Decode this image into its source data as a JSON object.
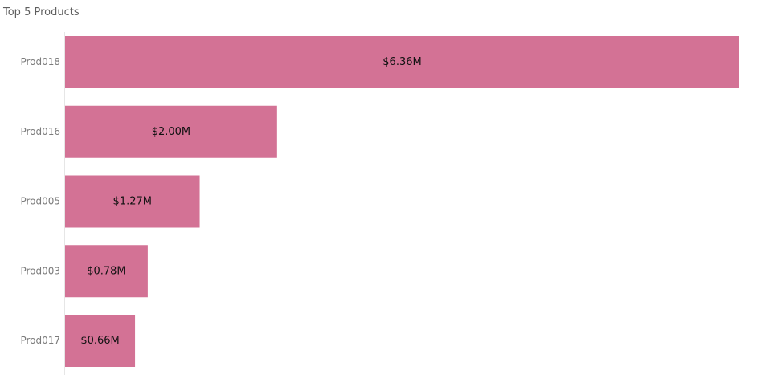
{
  "chart_data": {
    "type": "bar",
    "orientation": "horizontal",
    "title": "Top 5 Products",
    "categories": [
      "Prod018",
      "Prod016",
      "Prod005",
      "Prod003",
      "Prod017"
    ],
    "values": [
      6.36,
      2.0,
      1.27,
      0.78,
      0.66
    ],
    "value_unit": "$M",
    "data_labels": [
      "$6.36M",
      "$2.00M",
      "$1.27M",
      "$0.78M",
      "$0.66M"
    ],
    "xlabel": "",
    "ylabel": "",
    "grid": false,
    "legend": "none",
    "bar_color": "#D37295"
  }
}
